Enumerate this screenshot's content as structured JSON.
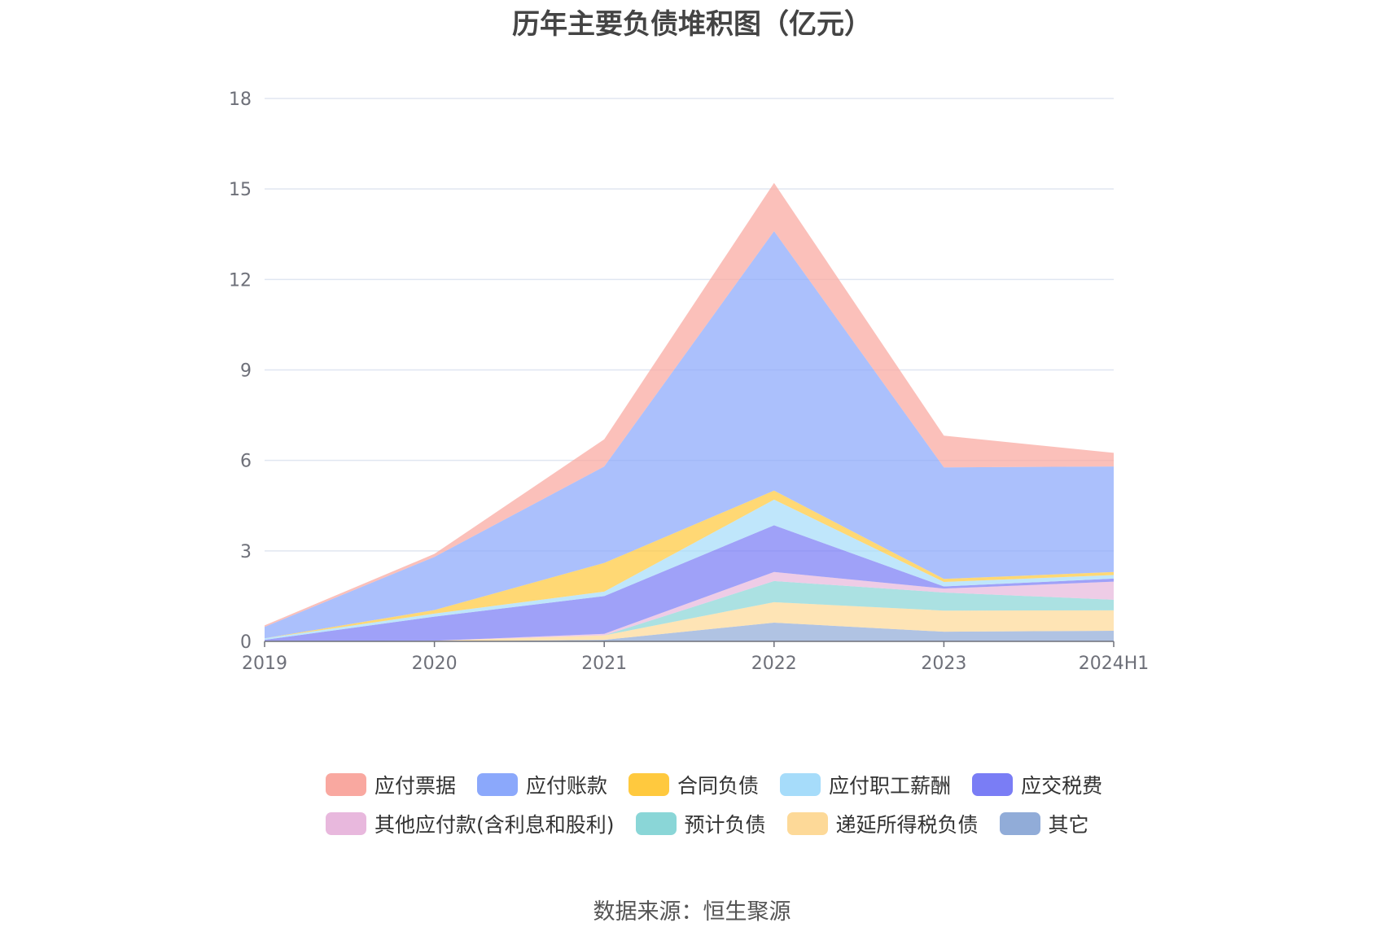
{
  "chart_data": {
    "type": "area",
    "stacked": true,
    "title": "历年主要负债堆积图（亿元）",
    "xlabel": "",
    "ylabel": "",
    "ylim": [
      0,
      18
    ],
    "yticks": [
      0,
      3,
      6,
      9,
      12,
      15,
      18
    ],
    "categories": [
      "2019",
      "2020",
      "2021",
      "2022",
      "2023",
      "2024H1"
    ],
    "grid": true,
    "legend_position": "bottom",
    "series": [
      {
        "name": "其它",
        "color": "#91acd8",
        "values": [
          0.0,
          0.0,
          0.05,
          0.62,
          0.32,
          0.35
        ]
      },
      {
        "name": "递延所得税负债",
        "color": "#fdd998",
        "values": [
          0.0,
          0.02,
          0.15,
          0.68,
          0.7,
          0.68
        ]
      },
      {
        "name": "预计负债",
        "color": "#8ad6d7",
        "values": [
          0.0,
          0.0,
          0.0,
          0.7,
          0.6,
          0.35
        ]
      },
      {
        "name": "其他应付款(含利息和股利)",
        "color": "#e8b8dd",
        "values": [
          0.0,
          0.0,
          0.05,
          0.3,
          0.13,
          0.6
        ]
      },
      {
        "name": "应交税费",
        "color": "#7a7df5",
        "values": [
          0.05,
          0.8,
          1.25,
          1.55,
          0.07,
          0.1
        ]
      },
      {
        "name": "应付职工薪酬",
        "color": "#a6dcfa",
        "values": [
          0.05,
          0.1,
          0.15,
          0.85,
          0.15,
          0.12
        ]
      },
      {
        "name": "合同负债",
        "color": "#ffc93e",
        "values": [
          0.0,
          0.12,
          0.95,
          0.3,
          0.1,
          0.1
        ]
      },
      {
        "name": "应付账款",
        "color": "#8ba8fb",
        "values": [
          0.38,
          1.76,
          3.2,
          8.6,
          3.7,
          3.5
        ]
      },
      {
        "name": "应付票据",
        "color": "#f9a8a0",
        "values": [
          0.05,
          0.1,
          0.9,
          1.6,
          1.05,
          0.45
        ]
      }
    ]
  },
  "legend": [
    [
      "应付票据",
      "应付账款",
      "合同负债",
      "应付职工薪酬",
      "应交税费"
    ],
    [
      "其他应付款(含利息和股利)",
      "预计负债",
      "递延所得税负债",
      "其它"
    ]
  ],
  "colors": {
    "应付票据": "#f9a8a0",
    "应付账款": "#8ba8fb",
    "合同负债": "#ffc93e",
    "应付职工薪酬": "#a6dcfa",
    "应交税费": "#7a7df5",
    "其他应付款(含利息和股利)": "#e8b8dd",
    "预计负债": "#8ad6d7",
    "递延所得税负债": "#fdd998",
    "其它": "#91acd8"
  },
  "source": "数据来源：恒生聚源"
}
